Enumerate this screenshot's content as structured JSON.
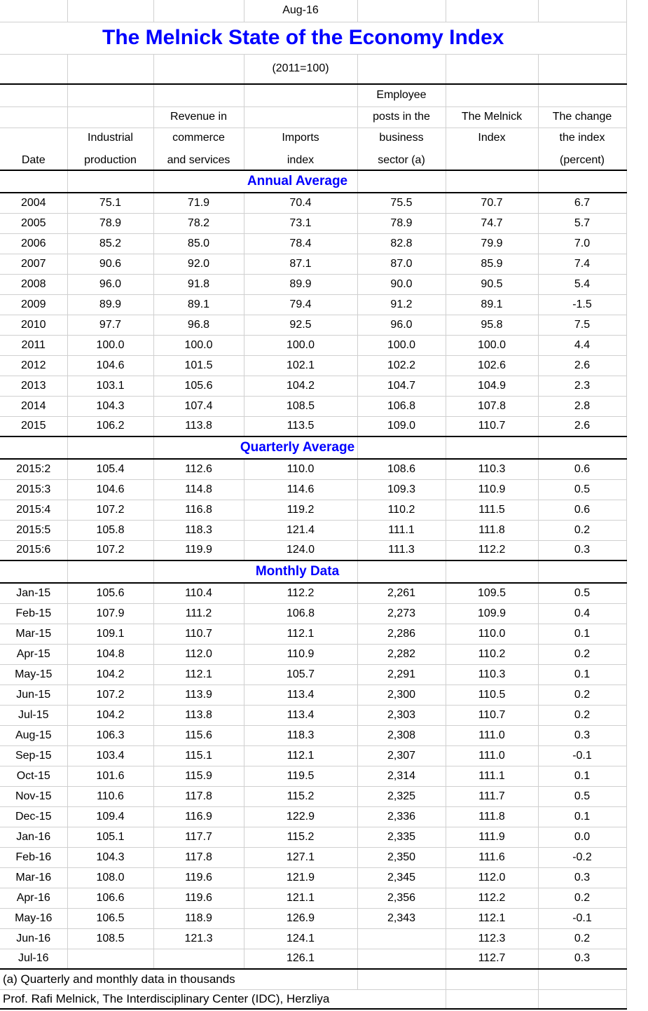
{
  "meta": {
    "period_label": "Aug-16",
    "title": "The Melnick State of the Economy Index",
    "base_note": "(2011=100)"
  },
  "header_rows": [
    [
      "",
      "",
      "",
      "",
      "Employee",
      "",
      ""
    ],
    [
      "",
      "",
      "Revenue in",
      "",
      "posts in the",
      "The Melnick",
      "The change"
    ],
    [
      "",
      "Industrial",
      "commerce",
      "Imports",
      "business",
      "Index",
      "the index"
    ],
    [
      "Date",
      "production",
      "and services",
      "index",
      "sector (a)",
      "",
      "(percent)"
    ]
  ],
  "sections": [
    {
      "title": "Annual Average",
      "rows": [
        [
          "2004",
          "75.1",
          "71.9",
          "70.4",
          "75.5",
          "70.7",
          "6.7"
        ],
        [
          "2005",
          "78.9",
          "78.2",
          "73.1",
          "78.9",
          "74.7",
          "5.7"
        ],
        [
          "2006",
          "85.2",
          "85.0",
          "78.4",
          "82.8",
          "79.9",
          "7.0"
        ],
        [
          "2007",
          "90.6",
          "92.0",
          "87.1",
          "87.0",
          "85.9",
          "7.4"
        ],
        [
          "2008",
          "96.0",
          "91.8",
          "89.9",
          "90.0",
          "90.5",
          "5.4"
        ],
        [
          "2009",
          "89.9",
          "89.1",
          "79.4",
          "91.2",
          "89.1",
          "-1.5"
        ],
        [
          "2010",
          "97.7",
          "96.8",
          "92.5",
          "96.0",
          "95.8",
          "7.5"
        ],
        [
          "2011",
          "100.0",
          "100.0",
          "100.0",
          "100.0",
          "100.0",
          "4.4"
        ],
        [
          "2012",
          "104.6",
          "101.5",
          "102.1",
          "102.2",
          "102.6",
          "2.6"
        ],
        [
          "2013",
          "103.1",
          "105.6",
          "104.2",
          "104.7",
          "104.9",
          "2.3"
        ],
        [
          "2014",
          "104.3",
          "107.4",
          "108.5",
          "106.8",
          "107.8",
          "2.8"
        ],
        [
          "2015",
          "106.2",
          "113.8",
          "113.5",
          "109.0",
          "110.7",
          "2.6"
        ]
      ]
    },
    {
      "title": "Quarterly Average",
      "rows": [
        [
          "2015:2",
          "105.4",
          "112.6",
          "110.0",
          "108.6",
          "110.3",
          "0.6"
        ],
        [
          "2015:3",
          "104.6",
          "114.8",
          "114.6",
          "109.3",
          "110.9",
          "0.5"
        ],
        [
          "2015:4",
          "107.2",
          "116.8",
          "119.2",
          "110.2",
          "111.5",
          "0.6"
        ],
        [
          "2015:5",
          "105.8",
          "118.3",
          "121.4",
          "111.1",
          "111.8",
          "0.2"
        ],
        [
          "2015:6",
          "107.2",
          "119.9",
          "124.0",
          "111.3",
          "112.2",
          "0.3"
        ]
      ]
    },
    {
      "title": "Monthly Data",
      "rows": [
        [
          "Jan-15",
          "105.6",
          "110.4",
          "112.2",
          "2,261",
          "109.5",
          "0.5"
        ],
        [
          "Feb-15",
          "107.9",
          "111.2",
          "106.8",
          "2,273",
          "109.9",
          "0.4"
        ],
        [
          "Mar-15",
          "109.1",
          "110.7",
          "112.1",
          "2,286",
          "110.0",
          "0.1"
        ],
        [
          "Apr-15",
          "104.8",
          "112.0",
          "110.9",
          "2,282",
          "110.2",
          "0.2"
        ],
        [
          "May-15",
          "104.2",
          "112.1",
          "105.7",
          "2,291",
          "110.3",
          "0.1"
        ],
        [
          "Jun-15",
          "107.2",
          "113.9",
          "113.4",
          "2,300",
          "110.5",
          "0.2"
        ],
        [
          "Jul-15",
          "104.2",
          "113.8",
          "113.4",
          "2,303",
          "110.7",
          "0.2"
        ],
        [
          "Aug-15",
          "106.3",
          "115.6",
          "118.3",
          "2,308",
          "111.0",
          "0.3"
        ],
        [
          "Sep-15",
          "103.4",
          "115.1",
          "112.1",
          "2,307",
          "111.0",
          "-0.1"
        ],
        [
          "Oct-15",
          "101.6",
          "115.9",
          "119.5",
          "2,314",
          "111.1",
          "0.1"
        ],
        [
          "Nov-15",
          "110.6",
          "117.8",
          "115.2",
          "2,325",
          "111.7",
          "0.5"
        ],
        [
          "Dec-15",
          "109.4",
          "116.9",
          "122.9",
          "2,336",
          "111.8",
          "0.1"
        ],
        [
          "Jan-16",
          "105.1",
          "117.7",
          "115.2",
          "2,335",
          "111.9",
          "0.0"
        ],
        [
          "Feb-16",
          "104.3",
          "117.8",
          "127.1",
          "2,350",
          "111.6",
          "-0.2"
        ],
        [
          "Mar-16",
          "108.0",
          "119.6",
          "121.9",
          "2,345",
          "112.0",
          "0.3"
        ],
        [
          "Apr-16",
          "106.6",
          "119.6",
          "121.1",
          "2,356",
          "112.2",
          "0.2"
        ],
        [
          "May-16",
          "106.5",
          "118.9",
          "126.9",
          "2,343",
          "112.1",
          "-0.1"
        ],
        [
          "Jun-16",
          "108.5",
          "121.3",
          "124.1",
          "",
          "112.3",
          "0.2"
        ],
        [
          "Jul-16",
          "",
          "",
          "126.1",
          "",
          "112.7",
          "0.3"
        ]
      ]
    }
  ],
  "footnotes": [
    "(a) Quarterly and monthly data in thousands",
    "Prof. Rafi Melnick, The Interdisciplinary Center (IDC), Herzliya"
  ],
  "colors": {
    "accent_blue": "#0000ff",
    "grid_gray": "#d0d0d0",
    "border_black": "#000000"
  }
}
